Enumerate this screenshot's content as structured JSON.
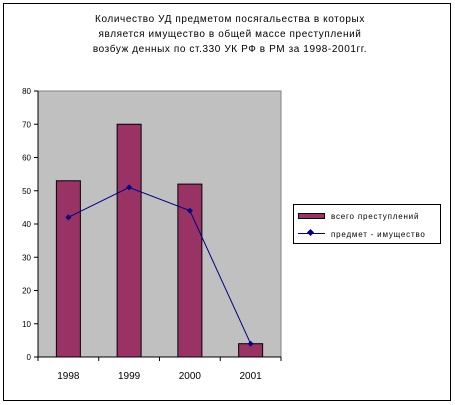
{
  "title": "Количество УД предметом посягальества в которых\nявляется имущество в общей массе преступлений\nвозбуж денных по ст.330 УК РФ в РМ за 1998-2001гг.",
  "chart_data": {
    "type": "bar",
    "title": "Количество УД предметом посягальества в которых\nявляется имущество в общей массе преступлений\nвозбуж денных по ст.330 УК РФ в РМ за 1998-2001гг.",
    "categories": [
      "1998",
      "1999",
      "2000",
      "2001"
    ],
    "ylim": [
      0,
      80
    ],
    "yticks": [
      0,
      10,
      20,
      30,
      40,
      50,
      60,
      70,
      80
    ],
    "grid": false,
    "legend_position": "right",
    "series": [
      {
        "name": "всего преступлений",
        "type": "bar",
        "color": "#993366",
        "values": [
          53,
          70,
          52,
          4
        ]
      },
      {
        "name": "предмет - имущество",
        "type": "line",
        "color": "#000080",
        "values": [
          42,
          51,
          44,
          4
        ]
      }
    ]
  }
}
